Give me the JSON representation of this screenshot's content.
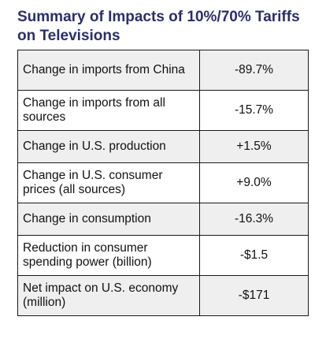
{
  "title": "Summary of Impacts of 10%/70% Tariffs on Televisions",
  "rows": [
    {
      "label": "Change in imports from China",
      "value": "-89.7%"
    },
    {
      "label": "Change in imports from all sources",
      "value": "-15.7%"
    },
    {
      "label": "Change in U.S. production",
      "value": "+1.5%"
    },
    {
      "label": "Change in U.S. consumer prices (all sources)",
      "value": "+9.0%"
    },
    {
      "label": "Change in consumption",
      "value": "-16.3%"
    },
    {
      "label": "Reduction in consumer spending power (billion)",
      "value": "-$1.5"
    },
    {
      "label": "Net impact on U.S. economy (million)",
      "value": "-$171"
    }
  ],
  "colors": {
    "title": "#2a2f6a",
    "shaded_row": "#efefef",
    "border": "#1a1a1a"
  }
}
